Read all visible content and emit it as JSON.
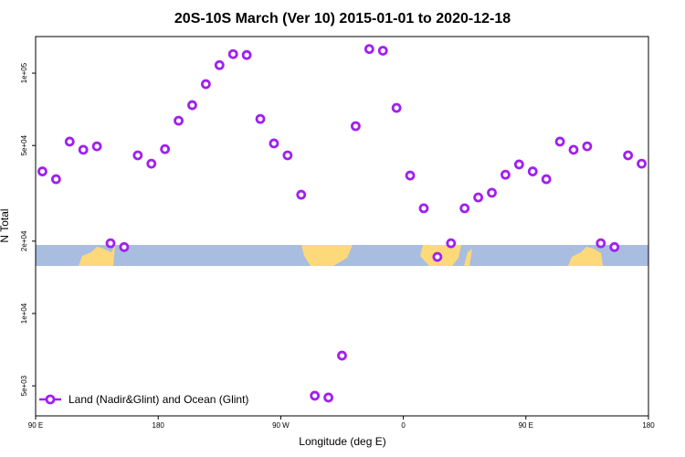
{
  "chart_data": {
    "type": "scatter",
    "title": "20S-10S March (Ver 10)   2015-01-01 to 2020-12-18",
    "x_label": "Longitude (deg E)",
    "y_label": "N Total",
    "log_y": true,
    "legend": "bottom-left",
    "xlim": [
      90,
      540
    ],
    "xticks": [
      {
        "value": 90,
        "label": "90 E"
      },
      {
        "value": 180,
        "label": "180"
      },
      {
        "value": 270,
        "label": "90 W"
      },
      {
        "value": 360,
        "label": "0"
      },
      {
        "value": 450,
        "label": "90 E"
      },
      {
        "value": 540,
        "label": "180"
      }
    ],
    "ylim": [
      3750,
      142000
    ],
    "yticks": [
      {
        "value": 5000,
        "label": "5e+03"
      },
      {
        "value": 10000,
        "label": "1e+04"
      },
      {
        "value": 20000,
        "label": "2e+04"
      },
      {
        "value": 50000,
        "label": "5e+04"
      },
      {
        "value": 100000,
        "label": "1e+05"
      }
    ],
    "series": [
      {
        "name": "Land (Nadir&Glint) and Ocean (Glint)",
        "color": "#a020f0",
        "x": [
          95,
          105,
          115,
          125,
          135,
          145,
          155,
          165,
          175,
          185,
          195,
          205,
          215,
          225,
          235,
          245,
          255,
          265,
          275,
          285,
          295,
          305,
          315,
          325,
          335,
          345,
          355,
          365,
          375,
          385,
          395,
          405,
          415,
          425,
          435,
          445,
          455,
          465,
          475,
          485,
          495,
          505,
          515,
          525,
          535
        ],
        "values": [
          39000,
          36200,
          51900,
          48000,
          49600,
          19600,
          18900,
          45500,
          42000,
          48300,
          63400,
          73600,
          90000,
          108000,
          120000,
          119000,
          64500,
          51000,
          45500,
          31200,
          4550,
          4470,
          6680,
          60200,
          126000,
          124000,
          71700,
          37500,
          27400,
          17200,
          19600,
          27400,
          30400,
          31800,
          37800,
          41700,
          39000,
          36200,
          51900,
          48000,
          49600,
          19600,
          18900,
          45500,
          42000
        ]
      }
    ]
  }
}
